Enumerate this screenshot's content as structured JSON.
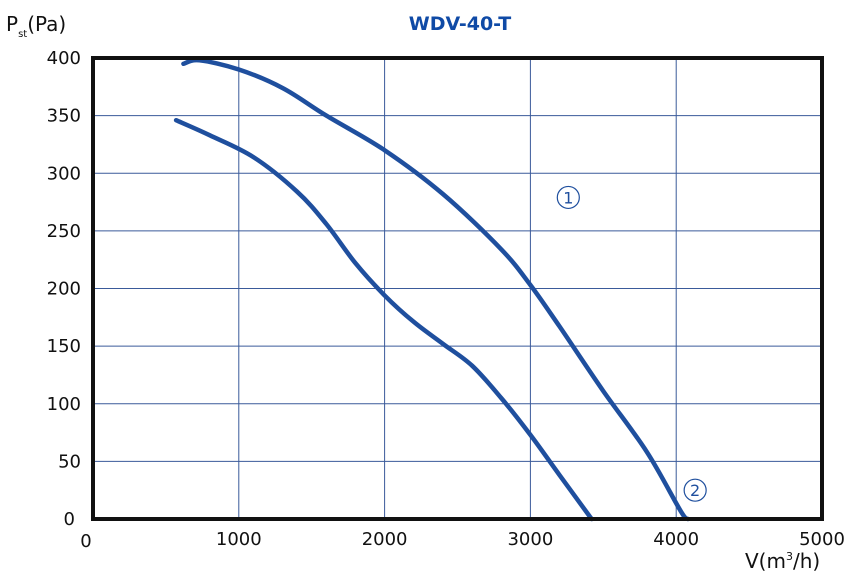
{
  "chart_data": {
    "type": "line",
    "title": "WDV-40-T",
    "title_color": "#0f4aa6",
    "ylabel": {
      "main": "P",
      "sub": "st",
      "unit": "(Pa)"
    },
    "xlabel": {
      "pre": "V(m",
      "sup": "3",
      "post": "/h)"
    },
    "xlim": [
      0,
      5000
    ],
    "ylim": [
      0,
      400
    ],
    "x_ticks": [
      {
        "value": 0,
        "label": "0"
      },
      {
        "value": 1000,
        "label": "1000"
      },
      {
        "value": 2000,
        "label": "2000"
      },
      {
        "value": 3000,
        "label": "3000"
      },
      {
        "value": 4000,
        "label": "4000"
      },
      {
        "value": 5000,
        "label": "5000"
      }
    ],
    "y_ticks": [
      {
        "value": 0,
        "label": "0"
      },
      {
        "value": 50,
        "label": "50"
      },
      {
        "value": 100,
        "label": "100"
      },
      {
        "value": 150,
        "label": "150"
      },
      {
        "value": 200,
        "label": "200"
      },
      {
        "value": 250,
        "label": "250"
      },
      {
        "value": 300,
        "label": "300"
      },
      {
        "value": 350,
        "label": "350"
      },
      {
        "value": 400,
        "label": "400"
      }
    ],
    "grid": true,
    "line_color": "#1f4f9e",
    "series": [
      {
        "marker": "1",
        "marker_at": [
          3260,
          279
        ],
        "points": [
          [
            620,
            395
          ],
          [
            730,
            398
          ],
          [
            1000,
            390
          ],
          [
            1300,
            374
          ],
          [
            1600,
            350
          ],
          [
            2000,
            320
          ],
          [
            2400,
            282
          ],
          [
            2800,
            234
          ],
          [
            3000,
            203
          ],
          [
            3200,
            167
          ],
          [
            3500,
            111
          ],
          [
            3800,
            58
          ],
          [
            4030,
            7
          ],
          [
            4080,
            0
          ]
        ]
      },
      {
        "marker": "2",
        "marker_at": [
          4130,
          25
        ],
        "points": [
          [
            570,
            346
          ],
          [
            800,
            333
          ],
          [
            1100,
            314
          ],
          [
            1400,
            284
          ],
          [
            1600,
            256
          ],
          [
            1800,
            222
          ],
          [
            2000,
            194
          ],
          [
            2200,
            171
          ],
          [
            2400,
            152
          ],
          [
            2600,
            133
          ],
          [
            2800,
            105
          ],
          [
            3000,
            73
          ],
          [
            3200,
            38
          ],
          [
            3420,
            0
          ]
        ]
      }
    ]
  }
}
